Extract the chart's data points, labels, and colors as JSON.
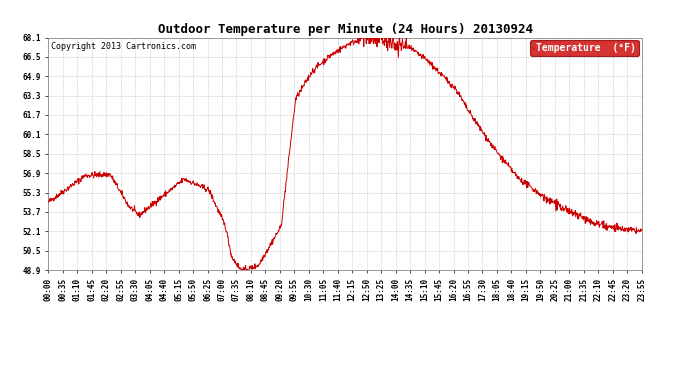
{
  "title": "Outdoor Temperature per Minute (24 Hours) 20130924",
  "copyright_text": "Copyright 2013 Cartronics.com",
  "legend_label": "Temperature  (°F)",
  "legend_bg": "#cc0000",
  "legend_text_color": "#ffffff",
  "line_color": "#cc0000",
  "bg_color": "#ffffff",
  "grid_color": "#bbbbbb",
  "yticks": [
    48.9,
    50.5,
    52.1,
    53.7,
    55.3,
    56.9,
    58.5,
    60.1,
    61.7,
    63.3,
    64.9,
    66.5,
    68.1
  ],
  "ymin": 48.9,
  "ymax": 68.1,
  "xtick_labels": [
    "00:00",
    "00:35",
    "01:10",
    "01:45",
    "02:20",
    "02:55",
    "03:30",
    "04:05",
    "04:40",
    "05:15",
    "05:50",
    "06:25",
    "07:00",
    "07:35",
    "08:10",
    "08:45",
    "09:20",
    "09:55",
    "10:30",
    "11:05",
    "11:40",
    "12:15",
    "12:50",
    "13:25",
    "14:00",
    "14:35",
    "15:10",
    "15:45",
    "16:20",
    "16:55",
    "17:30",
    "18:05",
    "18:40",
    "19:15",
    "19:50",
    "20:25",
    "21:00",
    "21:35",
    "22:10",
    "22:45",
    "23:20",
    "23:55"
  ],
  "title_fontsize": 9,
  "copyright_fontsize": 6,
  "tick_fontsize": 5.5,
  "legend_fontsize": 7,
  "ctrl_t": [
    0,
    90,
    150,
    195,
    220,
    270,
    330,
    390,
    430,
    445,
    465,
    480,
    510,
    565,
    600,
    640,
    680,
    730,
    770,
    780,
    810,
    840,
    870,
    920,
    990,
    1020,
    1080,
    1140,
    1200,
    1260,
    1320,
    1380,
    1440
  ],
  "ctrl_v": [
    54.5,
    56.7,
    56.8,
    54.2,
    53.4,
    54.8,
    56.4,
    55.5,
    52.5,
    50.0,
    49.0,
    48.9,
    49.3,
    52.5,
    63.0,
    65.3,
    66.5,
    67.6,
    68.1,
    68.0,
    67.8,
    67.6,
    67.4,
    66.2,
    63.8,
    62.0,
    59.0,
    56.5,
    55.0,
    53.8,
    52.8,
    52.3,
    52.1
  ]
}
